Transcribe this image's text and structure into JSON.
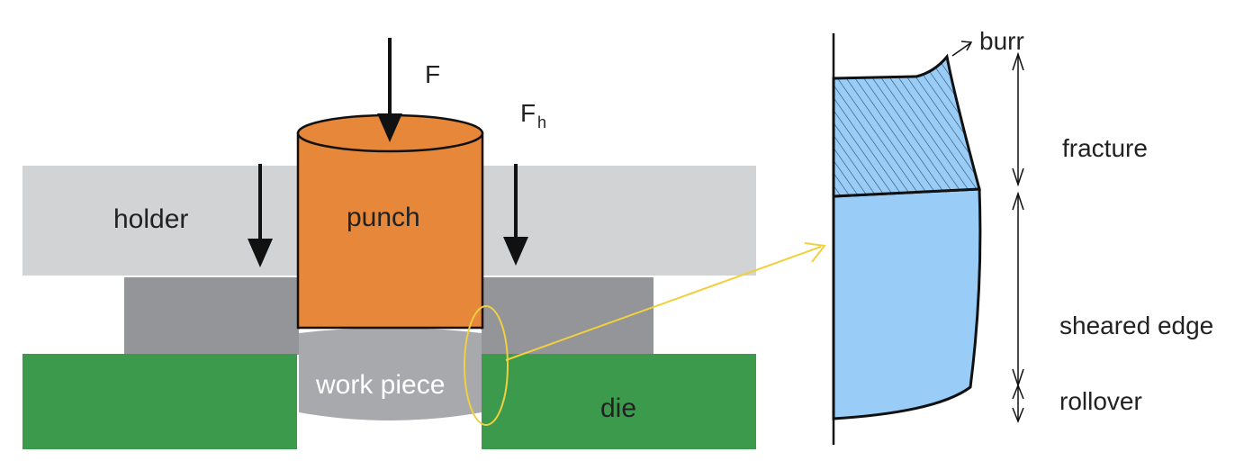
{
  "left_diagram": {
    "force_label": "F",
    "holder_force_label": "F",
    "holder_force_subscript": "h",
    "holder_label": "holder",
    "punch_label": "punch",
    "workpiece_label": "work piece",
    "die_label": "die"
  },
  "right_diagram": {
    "burr_label": "burr",
    "fracture_label": "fracture",
    "sheared_edge_label": "sheared edge",
    "rollover_label": "rollover"
  },
  "colors": {
    "holder": "#d1d3d4",
    "stripper": "#939598",
    "punch": "#e6873a",
    "workpiece": "#a7a9ac",
    "die": "#3c9a4d",
    "edge_fill": "#99cdf7",
    "highlight": "#f0d040",
    "ink": "#111111"
  }
}
